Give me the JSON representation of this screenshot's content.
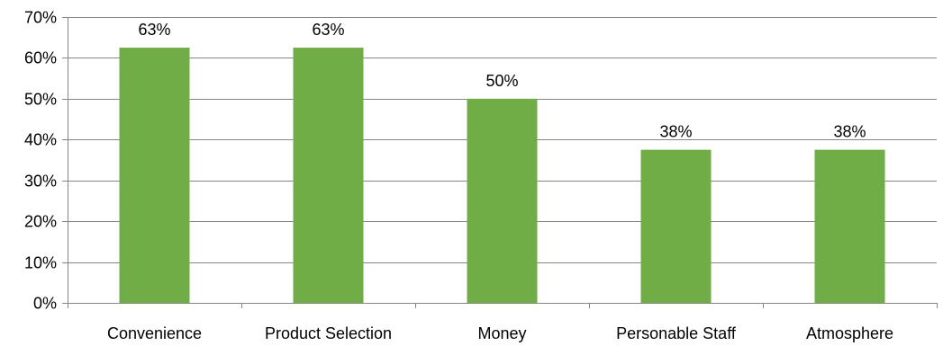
{
  "chart_data": {
    "type": "bar",
    "title": "",
    "xlabel": "",
    "ylabel": "",
    "categories": [
      "Convenience",
      "Product Selection",
      "Money",
      "Personable Staff",
      "Atmosphere"
    ],
    "values": [
      62.5,
      62.5,
      50,
      37.5,
      37.5
    ],
    "data_labels": [
      "63%",
      "63%",
      "50%",
      "38%",
      "38%"
    ],
    "ylim": [
      0,
      70
    ],
    "y_ticks": [
      0,
      10,
      20,
      30,
      40,
      50,
      60,
      70
    ],
    "y_tick_labels": [
      "0%",
      "10%",
      "20%",
      "30%",
      "40%",
      "50%",
      "60%",
      "70%"
    ],
    "grid": true,
    "legend": "none",
    "colors": {
      "bar": "#70AD47",
      "grid": "#868686",
      "axis": "#868686",
      "text": "#000000"
    }
  }
}
